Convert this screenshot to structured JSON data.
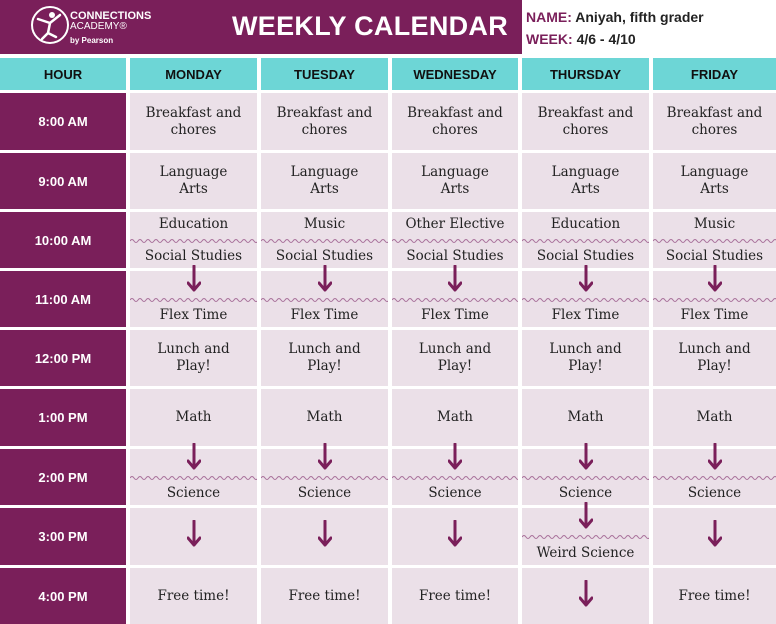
{
  "header": {
    "logo": {
      "line1": "CONNECTIONS",
      "line2": "ACADEMY®",
      "line3": "by Pearson"
    },
    "title": "WEEKLY CALENDAR",
    "name_label": "NAME:",
    "name_value": "Aniyah, fifth grader",
    "week_label": "WEEK:",
    "week_value": "4/6 - 4/10"
  },
  "colors": {
    "purple": "#7a1f5a",
    "teal": "#6dd6d6",
    "cell": "#ebe0e8",
    "wave": "#a8709a"
  },
  "columns": {
    "hour": "HOUR",
    "days": [
      "MONDAY",
      "TUESDAY",
      "WEDNESDAY",
      "THURSDAY",
      "FRIDAY"
    ]
  },
  "hours": [
    "8:00 AM",
    "9:00 AM",
    "10:00 AM",
    "11:00 AM",
    "12:00 PM",
    "1:00 PM",
    "2:00 PM",
    "3:00 PM",
    "4:00 PM"
  ],
  "schedule": [
    [
      {
        "type": "text",
        "text": "Breakfast and chores"
      },
      {
        "type": "text",
        "text": "Language Arts"
      },
      {
        "type": "split",
        "top": "Education",
        "bottom": "Social Studies"
      },
      {
        "type": "split",
        "top_icon": "arrow-down",
        "bottom": "Flex Time"
      },
      {
        "type": "text",
        "text": "Lunch and Play!"
      },
      {
        "type": "text",
        "text": "Math"
      },
      {
        "type": "split",
        "top_icon": "arrow-down",
        "bottom": "Science"
      },
      {
        "type": "arrow",
        "icon": "arrow-down"
      },
      {
        "type": "text",
        "text": "Free time!"
      }
    ],
    [
      {
        "type": "text",
        "text": "Breakfast and chores"
      },
      {
        "type": "text",
        "text": "Language Arts"
      },
      {
        "type": "split",
        "top": "Music",
        "bottom": "Social Studies"
      },
      {
        "type": "split",
        "top_icon": "arrow-down",
        "bottom": "Flex Time"
      },
      {
        "type": "text",
        "text": "Lunch and Play!"
      },
      {
        "type": "text",
        "text": "Math"
      },
      {
        "type": "split",
        "top_icon": "arrow-down",
        "bottom": "Science"
      },
      {
        "type": "arrow",
        "icon": "arrow-down"
      },
      {
        "type": "text",
        "text": "Free time!"
      }
    ],
    [
      {
        "type": "text",
        "text": "Breakfast and chores"
      },
      {
        "type": "text",
        "text": "Language Arts"
      },
      {
        "type": "split",
        "top": "Other Elective",
        "bottom": "Social Studies"
      },
      {
        "type": "split",
        "top_icon": "arrow-down",
        "bottom": "Flex Time"
      },
      {
        "type": "text",
        "text": "Lunch and Play!"
      },
      {
        "type": "text",
        "text": "Math"
      },
      {
        "type": "split",
        "top_icon": "arrow-down",
        "bottom": "Science"
      },
      {
        "type": "arrow",
        "icon": "arrow-down"
      },
      {
        "type": "text",
        "text": "Free time!"
      }
    ],
    [
      {
        "type": "text",
        "text": "Breakfast and chores"
      },
      {
        "type": "text",
        "text": "Language Arts"
      },
      {
        "type": "split",
        "top": "Education",
        "bottom": "Social Studies"
      },
      {
        "type": "split",
        "top_icon": "arrow-down",
        "bottom": "Flex Time"
      },
      {
        "type": "text",
        "text": "Lunch and Play!"
      },
      {
        "type": "text",
        "text": "Math"
      },
      {
        "type": "split",
        "top_icon": "arrow-down",
        "bottom": "Science"
      },
      {
        "type": "split",
        "top_icon": "arrow-down",
        "bottom": "Weird Science"
      },
      {
        "type": "arrow",
        "icon": "arrow-down"
      }
    ],
    [
      {
        "type": "text",
        "text": "Breakfast and chores"
      },
      {
        "type": "text",
        "text": "Language Arts"
      },
      {
        "type": "split",
        "top": "Music",
        "bottom": "Social Studies"
      },
      {
        "type": "split",
        "top_icon": "arrow-down",
        "bottom": "Flex Time"
      },
      {
        "type": "text",
        "text": "Lunch and Play!"
      },
      {
        "type": "text",
        "text": "Math"
      },
      {
        "type": "split",
        "top_icon": "arrow-down",
        "bottom": "Science"
      },
      {
        "type": "arrow",
        "icon": "arrow-down"
      },
      {
        "type": "text",
        "text": "Free time!"
      }
    ]
  ]
}
